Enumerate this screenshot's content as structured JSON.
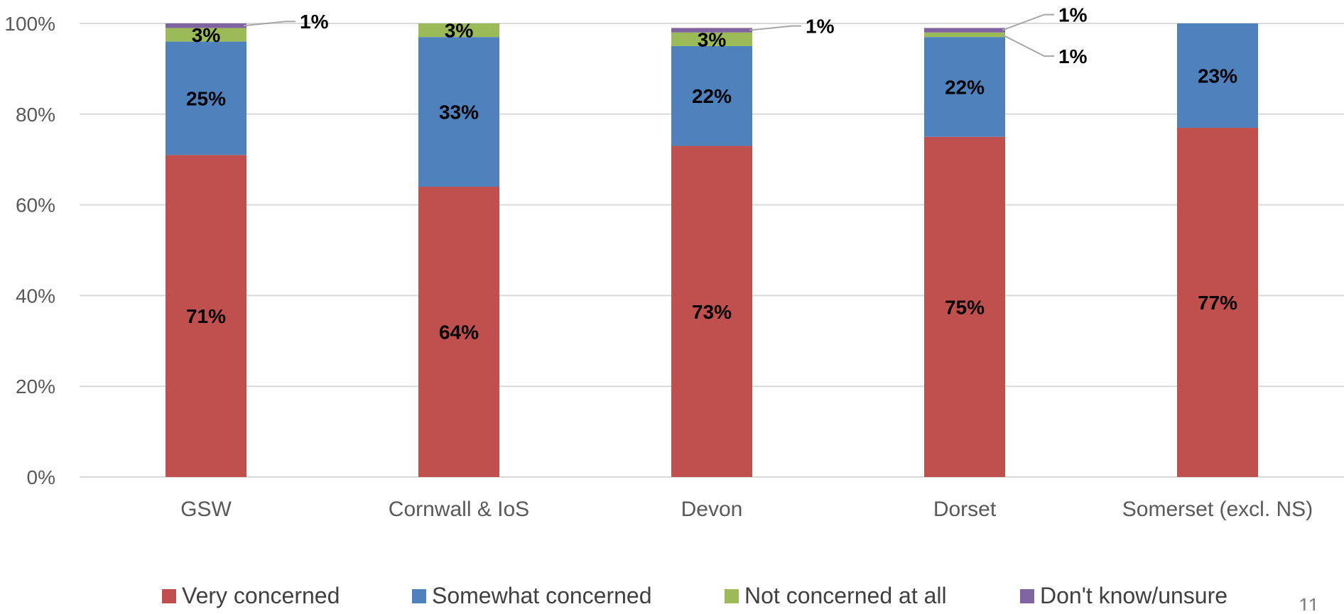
{
  "chart_data": {
    "type": "bar",
    "stacked": true,
    "categories": [
      "GSW",
      "Cornwall & IoS",
      "Devon",
      "Dorset",
      "Somerset (excl. NS)"
    ],
    "series": [
      {
        "name": "Very concerned",
        "color": "#C0504D",
        "values": [
          71,
          64,
          73,
          75,
          77
        ],
        "labels": [
          "71%",
          "64%",
          "73%",
          "75%",
          "77%"
        ]
      },
      {
        "name": "Somewhat concerned",
        "color": "#4F81BD",
        "values": [
          25,
          33,
          22,
          22,
          23
        ],
        "labels": [
          "25%",
          "33%",
          "22%",
          "22%",
          "23%"
        ]
      },
      {
        "name": "Not concerned at all",
        "color": "#9BBB59",
        "values": [
          3,
          3,
          3,
          1,
          0
        ],
        "labels": [
          "3%",
          "3%",
          "3%",
          "1%",
          ""
        ]
      },
      {
        "name": "Don't know/unsure",
        "color": "#8064A2",
        "values": [
          1,
          0,
          1,
          1,
          0
        ],
        "labels": [
          "1%",
          "",
          "1%",
          "1%",
          ""
        ]
      }
    ],
    "ylim": [
      0,
      100
    ],
    "y_ticks": [
      "0%",
      "20%",
      "40%",
      "60%",
      "80%",
      "100%"
    ],
    "grid": true,
    "legend_position": "bottom"
  },
  "page_number": "11"
}
